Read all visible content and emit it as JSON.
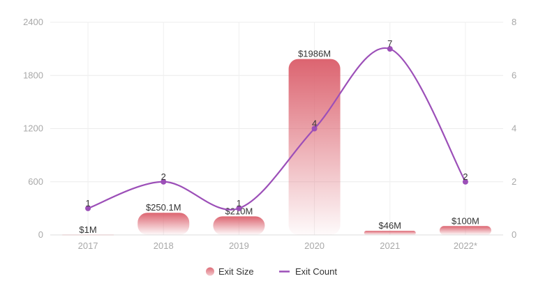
{
  "chart_data": {
    "type": "bar",
    "categories": [
      "2017",
      "2018",
      "2019",
      "2020",
      "2021",
      "2022*"
    ],
    "series": [
      {
        "name": "Exit Size",
        "type": "bar",
        "axis": "left",
        "values": [
          1,
          250.1,
          210,
          1986,
          46,
          100
        ],
        "labels": [
          "$1M",
          "$250.1M",
          "$210M",
          "$1986M",
          "$46M",
          "$100M"
        ],
        "color": "#dc6470"
      },
      {
        "name": "Exit Count",
        "type": "line",
        "axis": "right",
        "values": [
          1,
          2,
          1,
          4,
          7,
          2
        ],
        "labels": [
          "1",
          "2",
          "1",
          "4",
          "7",
          "2"
        ],
        "color": "#9c4fb8"
      }
    ],
    "y_left": {
      "min": 0,
      "max": 2400,
      "ticks": [
        "0",
        "600",
        "1200",
        "1800",
        "2400"
      ]
    },
    "y_right": {
      "min": 0,
      "max": 8,
      "ticks": [
        "0",
        "2",
        "4",
        "6",
        "8"
      ]
    },
    "grid": true,
    "legend": "bottom-center"
  }
}
